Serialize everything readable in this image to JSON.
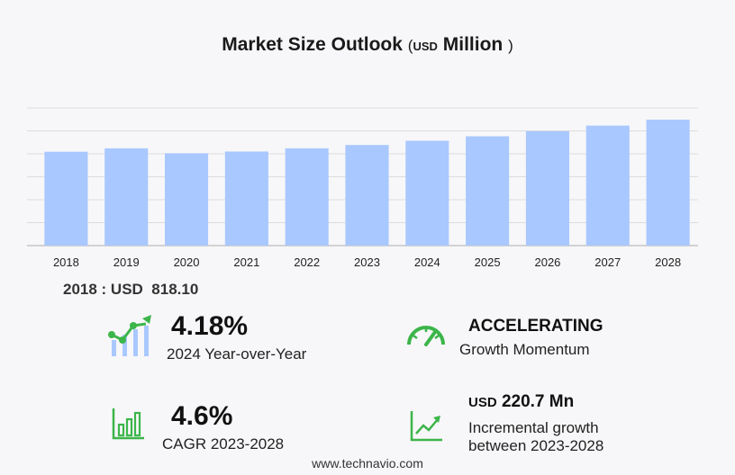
{
  "header": {
    "title": "Market Size Outlook",
    "paren_open": "(",
    "unit": "USD",
    "unit_word": "Million",
    "paren_close": ")"
  },
  "chart_data": {
    "type": "bar",
    "categories": [
      "2018",
      "2019",
      "2020",
      "2021",
      "2022",
      "2023",
      "2024",
      "2025",
      "2026",
      "2027",
      "2028"
    ],
    "values": [
      818.1,
      848.0,
      805.0,
      820.0,
      848.0,
      877.0,
      914.0,
      953.0,
      998.0,
      1046.0,
      1097.7
    ],
    "ylim": [
      0,
      1200
    ],
    "grid": true,
    "bar_color": "#a9c8ff"
  },
  "base_year": {
    "label": "2018 : USD",
    "value": "818.10"
  },
  "stats": {
    "yoy": {
      "value": "4.18%",
      "label": "2024 Year-over-Year"
    },
    "momentum": {
      "value": "ACCELERATING",
      "label": "Growth Momentum"
    },
    "cagr": {
      "value": "4.6%",
      "label": "CAGR 2023-2028"
    },
    "incremental": {
      "unit": "USD",
      "value": "220.7 Mn",
      "label_line1": "Incremental growth",
      "label_line2": "between 2023-2028"
    }
  },
  "icons": {
    "yoy": "line-bar-growth-icon",
    "momentum": "speedometer-icon",
    "cagr": "bar-chart-icon",
    "incremental": "trend-up-icon"
  },
  "colors": {
    "accent": "#3cb54a",
    "bar": "#a9c8ff"
  },
  "footer": {
    "text": "www.technavio.com"
  }
}
